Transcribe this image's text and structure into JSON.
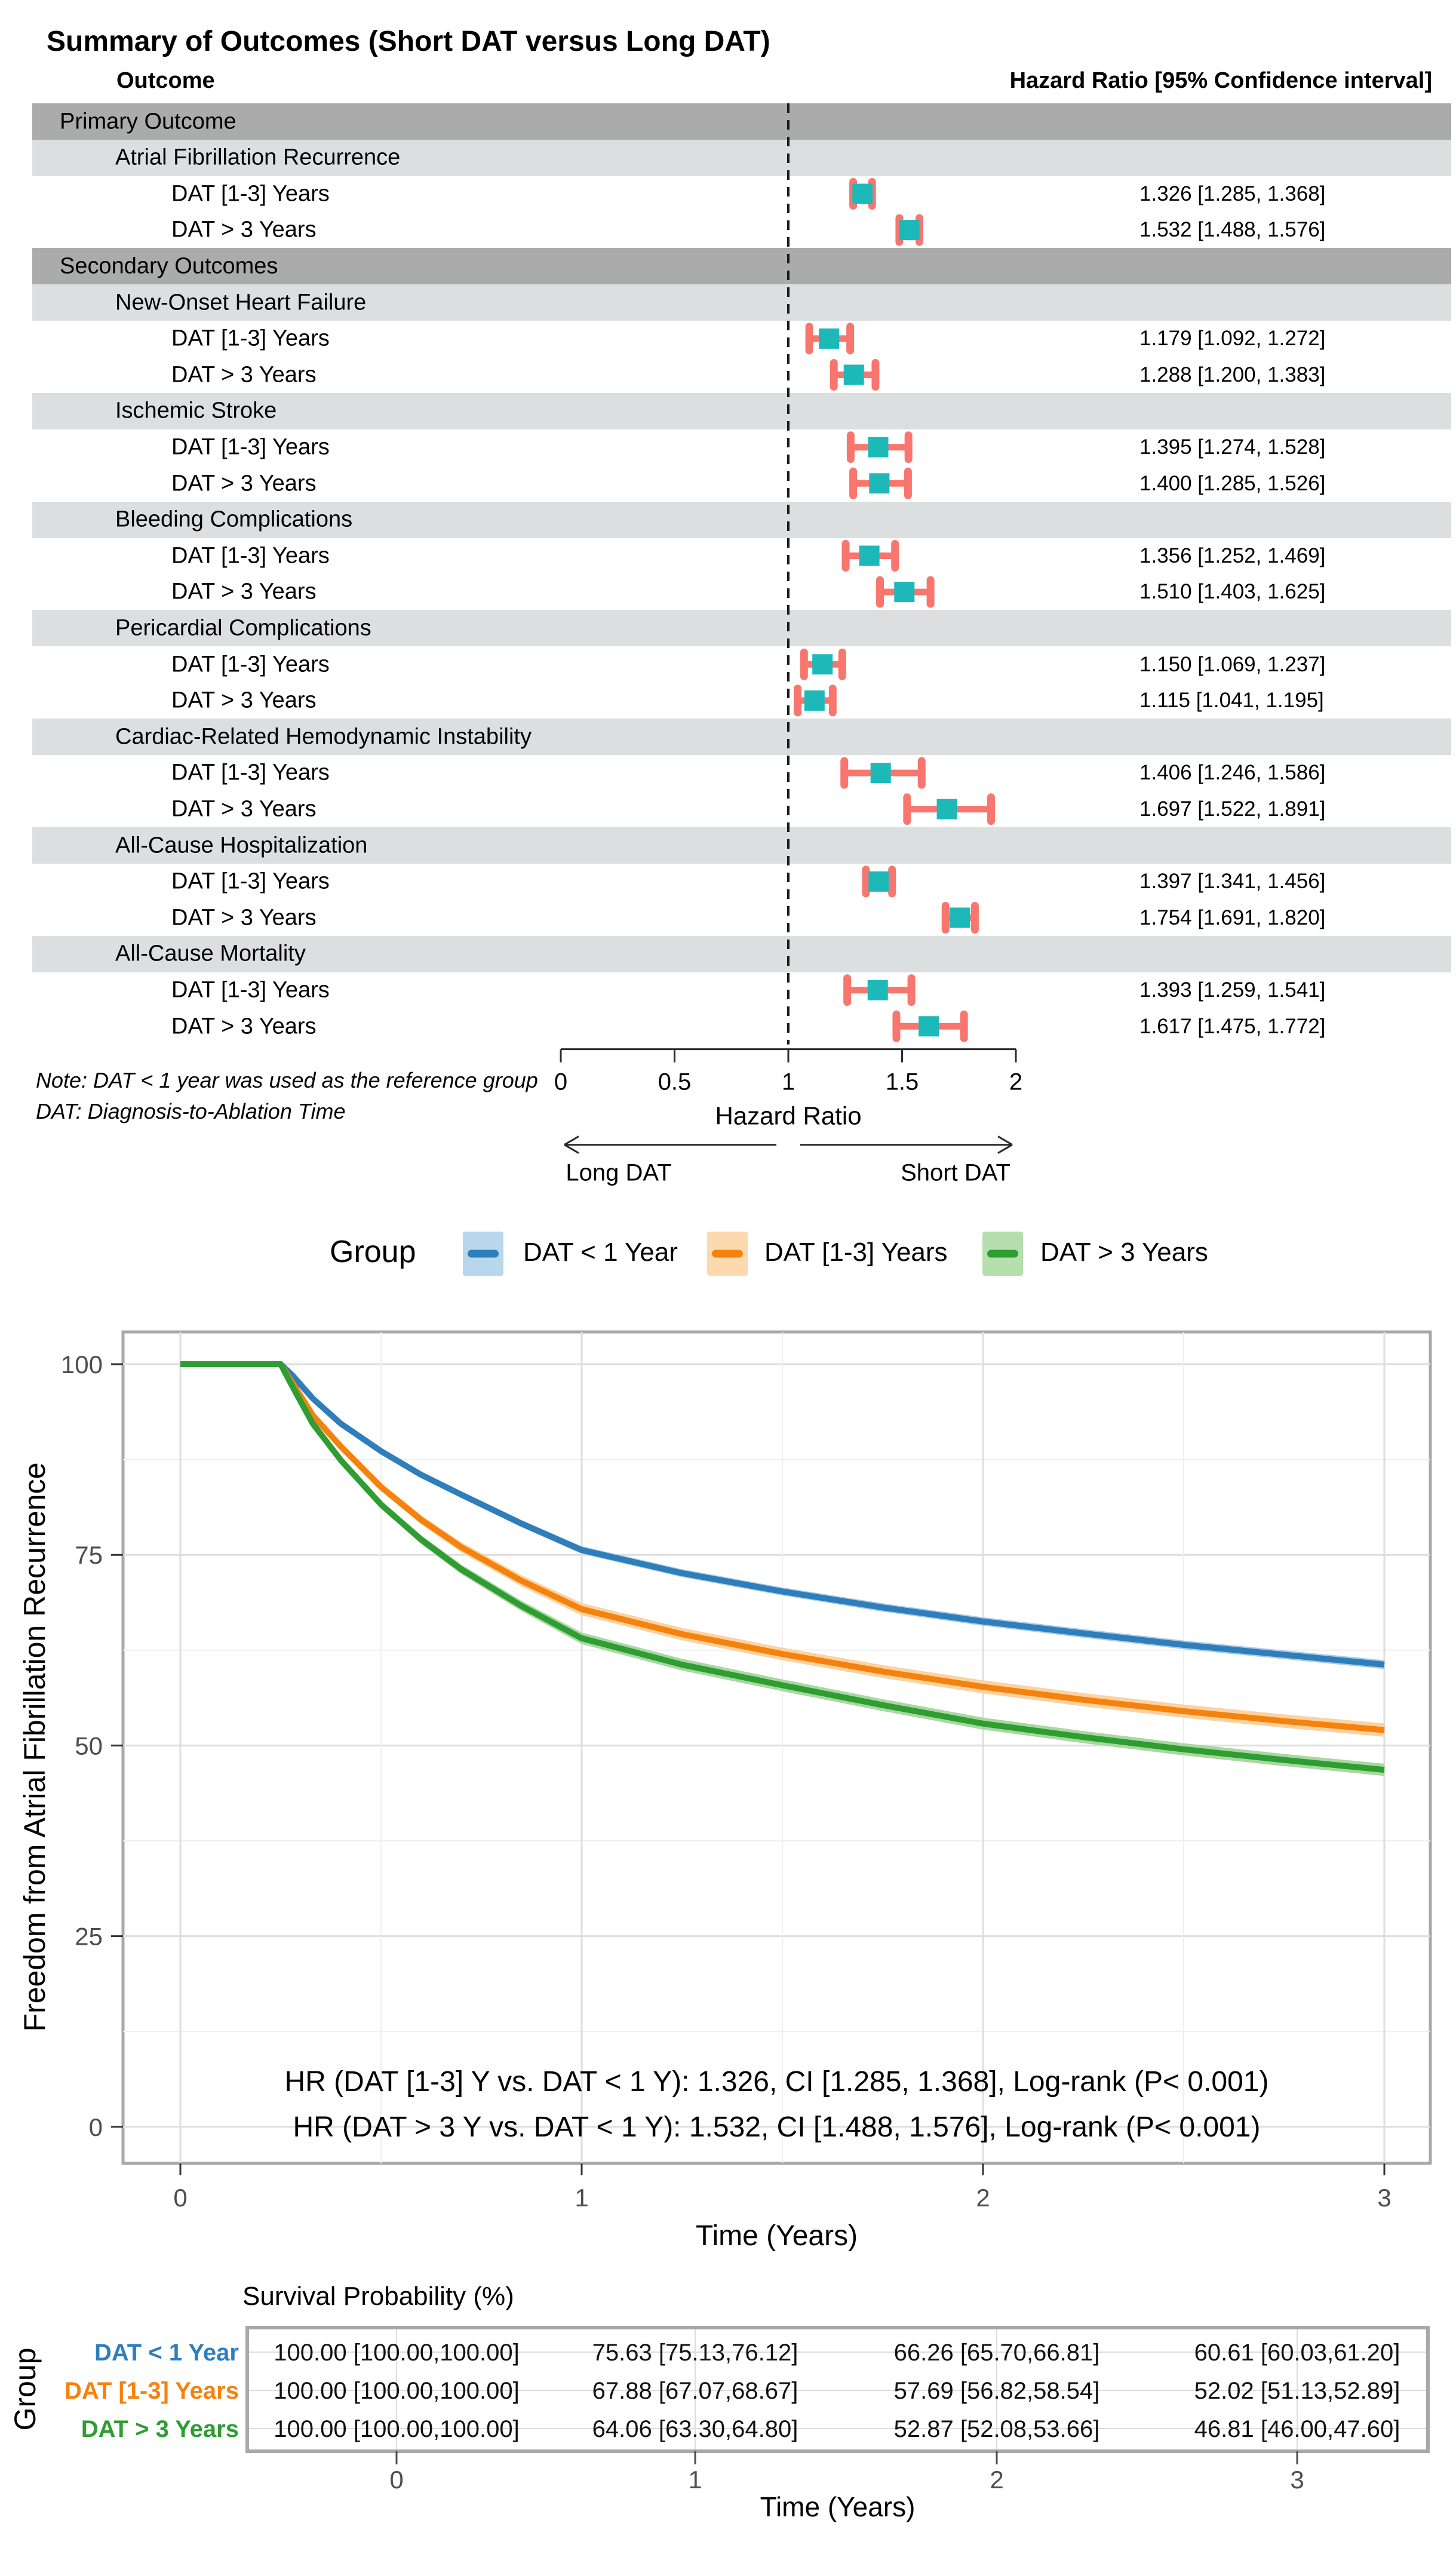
{
  "chart_data": [
    {
      "type": "scatter",
      "subtype": "forest-plot",
      "title": "Summary of Outcomes (Short DAT versus Long DAT)",
      "columns": [
        "Outcome",
        "Hazard Ratio [95% Confidence interval]"
      ],
      "xlabel": "Hazard Ratio",
      "xticks": [
        "0",
        "0.5",
        "1",
        "1.5",
        "2"
      ],
      "xlim": [
        0,
        2
      ],
      "reference_line": 1,
      "direction_left": "Long DAT",
      "direction_right": "Short DAT",
      "notes": [
        "Note: DAT < 1 year was used as the reference group",
        "DAT: Diagnosis-to-Ablation Time"
      ],
      "colors": {
        "marker": "#1db9b9",
        "ci": "#f8766d",
        "group_band": "#ababab",
        "outcome_band": "#dcdfe0"
      },
      "rows": [
        {
          "type": "group",
          "label": "Primary Outcome"
        },
        {
          "type": "outcome",
          "label": "Atrial Fibrillation Recurrence"
        },
        {
          "type": "item",
          "label": "DAT [1-3] Years",
          "hr": 1.326,
          "lo": 1.285,
          "hi": 1.368,
          "text": "1.326 [1.285, 1.368]"
        },
        {
          "type": "item",
          "label": "DAT > 3 Years",
          "hr": 1.532,
          "lo": 1.488,
          "hi": 1.576,
          "text": "1.532 [1.488, 1.576]"
        },
        {
          "type": "group",
          "label": "Secondary Outcomes"
        },
        {
          "type": "outcome",
          "label": "New-Onset Heart Failure"
        },
        {
          "type": "item",
          "label": "DAT [1-3] Years",
          "hr": 1.179,
          "lo": 1.092,
          "hi": 1.272,
          "text": "1.179 [1.092, 1.272]"
        },
        {
          "type": "item",
          "label": "DAT > 3 Years",
          "hr": 1.288,
          "lo": 1.2,
          "hi": 1.383,
          "text": "1.288 [1.200, 1.383]"
        },
        {
          "type": "outcome",
          "label": "Ischemic Stroke"
        },
        {
          "type": "item",
          "label": "DAT [1-3] Years",
          "hr": 1.395,
          "lo": 1.274,
          "hi": 1.528,
          "text": "1.395 [1.274, 1.528]"
        },
        {
          "type": "item",
          "label": "DAT > 3 Years",
          "hr": 1.4,
          "lo": 1.285,
          "hi": 1.526,
          "text": "1.400 [1.285, 1.526]"
        },
        {
          "type": "outcome",
          "label": "Bleeding Complications"
        },
        {
          "type": "item",
          "label": "DAT [1-3] Years",
          "hr": 1.356,
          "lo": 1.252,
          "hi": 1.469,
          "text": "1.356 [1.252, 1.469]"
        },
        {
          "type": "item",
          "label": "DAT > 3 Years",
          "hr": 1.51,
          "lo": 1.403,
          "hi": 1.625,
          "text": "1.510 [1.403, 1.625]"
        },
        {
          "type": "outcome",
          "label": "Pericardial Complications"
        },
        {
          "type": "item",
          "label": "DAT [1-3] Years",
          "hr": 1.15,
          "lo": 1.069,
          "hi": 1.237,
          "text": "1.150 [1.069, 1.237]"
        },
        {
          "type": "item",
          "label": "DAT > 3 Years",
          "hr": 1.115,
          "lo": 1.041,
          "hi": 1.195,
          "text": "1.115 [1.041, 1.195]"
        },
        {
          "type": "outcome",
          "label": "Cardiac-Related Hemodynamic Instability"
        },
        {
          "type": "item",
          "label": "DAT [1-3] Years",
          "hr": 1.406,
          "lo": 1.246,
          "hi": 1.586,
          "text": "1.406 [1.246, 1.586]"
        },
        {
          "type": "item",
          "label": "DAT > 3 Years",
          "hr": 1.697,
          "lo": 1.522,
          "hi": 1.891,
          "text": "1.697 [1.522, 1.891]"
        },
        {
          "type": "outcome",
          "label": "All-Cause Hospitalization"
        },
        {
          "type": "item",
          "label": "DAT [1-3] Years",
          "hr": 1.397,
          "lo": 1.341,
          "hi": 1.456,
          "text": "1.397 [1.341, 1.456]"
        },
        {
          "type": "item",
          "label": "DAT > 3 Years",
          "hr": 1.754,
          "lo": 1.691,
          "hi": 1.82,
          "text": "1.754 [1.691, 1.820]"
        },
        {
          "type": "outcome",
          "label": "All-Cause Mortality"
        },
        {
          "type": "item",
          "label": "DAT [1-3] Years",
          "hr": 1.393,
          "lo": 1.259,
          "hi": 1.541,
          "text": "1.393 [1.259, 1.541]"
        },
        {
          "type": "item",
          "label": "DAT > 3 Years",
          "hr": 1.617,
          "lo": 1.475,
          "hi": 1.772,
          "text": "1.617 [1.475, 1.772]"
        }
      ]
    },
    {
      "type": "line",
      "subtype": "kaplan-meier",
      "legend_title": "Group",
      "legend_position": "top",
      "ylabel": "Freedom from Atrial Fibrillation Recurrence",
      "xlabel": "Time (Years)",
      "xticks": [
        "0",
        "1",
        "2",
        "3"
      ],
      "yticks": [
        "0",
        "25",
        "50",
        "75",
        "100"
      ],
      "xlim": [
        0,
        3
      ],
      "ylim": [
        0,
        100
      ],
      "grid": "on",
      "annotations": [
        "HR (DAT [1-3] Y vs. DAT < 1 Y): 1.326, CI [1.285, 1.368], Log-rank (P< 0.001)",
        "HR (DAT > 3 Y vs. DAT < 1 Y): 1.532, CI [1.488, 1.576], Log-rank (P< 0.001)"
      ],
      "series": [
        {
          "name": "DAT < 1 Year",
          "color": "#2e7ebc",
          "band_color": "#aacbe6",
          "fill": "#b9d7ec",
          "points": [
            [
              0,
              100,
              0
            ],
            [
              0.25,
              100,
              0
            ],
            [
              0.28,
              98.5,
              0.1
            ],
            [
              0.33,
              95.5,
              0.2
            ],
            [
              0.4,
              92.2,
              0.28
            ],
            [
              0.5,
              88.6,
              0.33
            ],
            [
              0.6,
              85.5,
              0.38
            ],
            [
              0.7,
              82.9,
              0.42
            ],
            [
              0.85,
              79.1,
              0.46
            ],
            [
              1,
              75.63,
              0.5
            ],
            [
              1.25,
              72.6,
              0.52
            ],
            [
              1.5,
              70.2,
              0.53
            ],
            [
              1.75,
              68.1,
              0.55
            ],
            [
              2,
              66.26,
              0.56
            ],
            [
              2.25,
              64.7,
              0.57
            ],
            [
              2.5,
              63.2,
              0.58
            ],
            [
              2.75,
              61.9,
              0.58
            ],
            [
              3,
              60.61,
              0.59
            ]
          ]
        },
        {
          "name": "DAT [1-3] Years",
          "color": "#f5820d",
          "band_color": "#fbd2a0",
          "fill": "#fdd9b0",
          "points": [
            [
              0,
              100,
              0
            ],
            [
              0.25,
              100,
              0
            ],
            [
              0.28,
              97.5,
              0.15
            ],
            [
              0.33,
              93.3,
              0.3
            ],
            [
              0.4,
              89.2,
              0.42
            ],
            [
              0.5,
              83.9,
              0.52
            ],
            [
              0.6,
              79.6,
              0.6
            ],
            [
              0.7,
              76,
              0.65
            ],
            [
              0.85,
              71.6,
              0.73
            ],
            [
              1,
              67.88,
              0.8
            ],
            [
              1.25,
              64.6,
              0.82
            ],
            [
              1.5,
              62,
              0.83
            ],
            [
              1.75,
              59.7,
              0.85
            ],
            [
              2,
              57.69,
              0.86
            ],
            [
              2.25,
              56,
              0.87
            ],
            [
              2.5,
              54.5,
              0.87
            ],
            [
              2.75,
              53.2,
              0.88
            ],
            [
              3,
              52.02,
              0.88
            ]
          ]
        },
        {
          "name": "DAT > 3 Years",
          "color": "#2e9d32",
          "band_color": "#a8d8a0",
          "fill": "#b5dfac",
          "points": [
            [
              0,
              100,
              0
            ],
            [
              0.25,
              100,
              0
            ],
            [
              0.28,
              97,
              0.15
            ],
            [
              0.33,
              92.2,
              0.3
            ],
            [
              0.4,
              87.4,
              0.42
            ],
            [
              0.5,
              81.6,
              0.5
            ],
            [
              0.6,
              77,
              0.57
            ],
            [
              0.7,
              73.1,
              0.62
            ],
            [
              0.85,
              68.3,
              0.68
            ],
            [
              1,
              64.06,
              0.75
            ],
            [
              1.25,
              60.6,
              0.77
            ],
            [
              1.5,
              57.9,
              0.78
            ],
            [
              1.75,
              55.3,
              0.78
            ],
            [
              2,
              52.87,
              0.79
            ],
            [
              2.25,
              51.1,
              0.79
            ],
            [
              2.5,
              49.5,
              0.8
            ],
            [
              2.75,
              48.1,
              0.8
            ],
            [
              3,
              46.81,
              0.8
            ]
          ]
        }
      ]
    },
    {
      "type": "table",
      "title": "Survival Probability (%)",
      "ylabel": "Group",
      "xlabel": "Time (Years)",
      "time_points": [
        "0",
        "1",
        "2",
        "3"
      ],
      "rows": [
        {
          "label": "DAT < 1 Year",
          "color": "#2e7ebc",
          "values": [
            "100.00 [100.00,100.00]",
            "75.63 [75.13,76.12]",
            "66.26 [65.70,66.81]",
            "60.61 [60.03,61.20]"
          ]
        },
        {
          "label": "DAT [1-3] Years",
          "color": "#f5820d",
          "values": [
            "100.00 [100.00,100.00]",
            "67.88 [67.07,68.67]",
            "57.69 [56.82,58.54]",
            "52.02 [51.13,52.89]"
          ]
        },
        {
          "label": "DAT > 3 Years",
          "color": "#2e9d32",
          "values": [
            "100.00 [100.00,100.00]",
            "64.06 [63.30,64.80]",
            "52.87 [52.08,53.66]",
            "46.81 [46.00,47.60]"
          ]
        }
      ]
    }
  ]
}
